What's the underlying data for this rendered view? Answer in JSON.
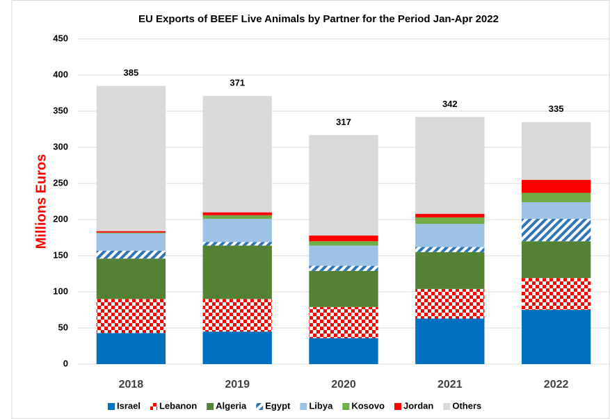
{
  "chart_data": {
    "type": "stacked_bar",
    "title": "EU Exports of BEEF Live Animals by Partner for the Period Jan-Apr 2022",
    "y_label": "Millions Euros",
    "categories": [
      "2018",
      "2019",
      "2020",
      "2021",
      "2022"
    ],
    "series": [
      {
        "name": "Israel",
        "color": "#0070c0",
        "values": [
          43,
          45,
          36,
          63,
          75
        ]
      },
      {
        "name": "Lebanon",
        "color": "#ff0000",
        "pattern": "checker",
        "values": [
          47,
          45,
          43,
          41,
          44
        ]
      },
      {
        "name": "Algeria",
        "color": "#548235",
        "values": [
          56,
          74,
          50,
          51,
          51
        ]
      },
      {
        "name": "Egypt",
        "color": "#2e75b6",
        "pattern": "stripes",
        "values": [
          11,
          5,
          7,
          7,
          31
        ]
      },
      {
        "name": "Libya",
        "color": "#9dc3e6",
        "values": [
          24,
          32,
          28,
          32,
          23
        ]
      },
      {
        "name": "Kosovo",
        "color": "#70ad47",
        "values": [
          1,
          5,
          6,
          9,
          13
        ]
      },
      {
        "name": "Jordan",
        "color": "#ff0000",
        "values": [
          2,
          4,
          8,
          5,
          18
        ]
      },
      {
        "name": "Others",
        "color": "#d9d9d9",
        "values": [
          201,
          161,
          139,
          134,
          80
        ]
      }
    ],
    "totals": [
      385,
      371,
      317,
      342,
      335
    ],
    "ylim": [
      0,
      450
    ],
    "yticks": [
      0,
      50,
      100,
      150,
      200,
      250,
      300,
      350,
      400,
      450
    ],
    "grid": true,
    "legend": "bottom"
  }
}
